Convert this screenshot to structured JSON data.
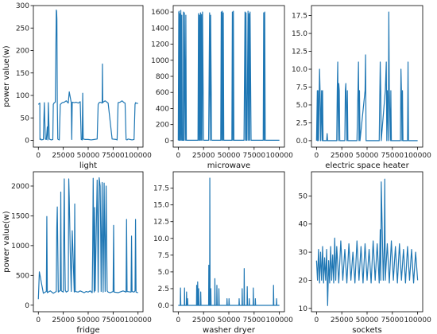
{
  "chart_data": [
    {
      "type": "line",
      "xlabel": "light",
      "ylabel": "power value(w)",
      "xlim": [
        -5000,
        105000
      ],
      "ylim": [
        -15,
        300
      ],
      "xticks": [
        0,
        25000,
        50000,
        75000,
        100000
      ],
      "yticks": [
        0,
        50,
        100,
        150,
        200,
        250,
        300
      ],
      "color": "#1f77b4",
      "series": [
        {
          "x": [
            0,
            1500,
            1600,
            2500,
            3000,
            5000,
            6000,
            7000,
            8000,
            9000,
            9500,
            10000,
            11000,
            12000,
            13000,
            14500,
            15000,
            16000,
            17000,
            17500,
            18000,
            18300,
            18600,
            19000,
            19500,
            20000,
            21000,
            22000,
            24000,
            26000,
            28000,
            30000,
            31000,
            33000,
            33500,
            34000,
            36000,
            38000,
            40000,
            42000,
            43000,
            44000,
            44500,
            45000,
            47000,
            50000,
            53000,
            56000,
            59000,
            60000,
            61000,
            62000,
            64000,
            64300,
            64600,
            65000,
            67000,
            70000,
            74000,
            78000,
            79000,
            80000,
            82000,
            84000,
            86000,
            87000,
            88000,
            89000,
            90000,
            92000,
            94000,
            96000,
            97000,
            97500,
            98000,
            100000
          ],
          "y": [
            80,
            83,
            2,
            3,
            1,
            2,
            84,
            3,
            2,
            30,
            1,
            84,
            3,
            2,
            1,
            2,
            80,
            84,
            85,
            188,
            290,
            288,
            270,
            84,
            3,
            2,
            1,
            80,
            84,
            85,
            88,
            83,
            108,
            84,
            2,
            85,
            84,
            85,
            83,
            86,
            2,
            1,
            105,
            3,
            2,
            2,
            1,
            2,
            3,
            80,
            84,
            85,
            83,
            170,
            84,
            85,
            88,
            83,
            3,
            2,
            1,
            84,
            85,
            88,
            84,
            83,
            2,
            1,
            3,
            2,
            1,
            2,
            80,
            84,
            83,
            82
          ]
        }
      ]
    },
    {
      "type": "line",
      "xlabel": "microwave",
      "ylabel": "",
      "xlim": [
        -5000,
        105000
      ],
      "ylim": [
        -80,
        1680
      ],
      "xticks": [
        0,
        25000,
        50000,
        75000,
        100000
      ],
      "yticks": [
        0,
        200,
        400,
        600,
        800,
        1000,
        1200,
        1400,
        1600
      ],
      "color": "#1f77b4",
      "series": [
        {
          "x": [
            0,
            500,
            600,
            800,
            1000,
            1500,
            2000,
            2500,
            3000,
            3500,
            4000,
            5000,
            5200,
            5600,
            6000,
            7000,
            7500,
            8000,
            10000,
            19500,
            20000,
            20500,
            21000,
            21500,
            22000,
            22500,
            23000,
            23500,
            24000,
            25000,
            30000,
            31000,
            31500,
            32000,
            33000,
            42000,
            42500,
            43000,
            43500,
            44000,
            44500,
            45000,
            53000,
            53500,
            54000,
            54500,
            55000,
            56000,
            65000,
            66000,
            66500,
            67000,
            67500,
            68000,
            69000,
            69500,
            70000,
            70500,
            71000,
            72000,
            84000,
            84500,
            85000,
            85500,
            86000,
            87000,
            100000
          ],
          "y": [
            5,
            1600,
            5,
            1610,
            5,
            1580,
            5,
            1620,
            5,
            1560,
            5,
            5,
            1600,
            5,
            1590,
            5,
            1560,
            5,
            5,
            5,
            1580,
            5,
            1560,
            5,
            1590,
            5,
            1570,
            5,
            1600,
            5,
            5,
            1590,
            5,
            1560,
            5,
            5,
            1600,
            5,
            1610,
            5,
            1590,
            5,
            5,
            1600,
            5,
            1610,
            5,
            5,
            5,
            1600,
            5,
            1590,
            5,
            5,
            1610,
            5,
            1580,
            5,
            1600,
            5,
            5,
            1590,
            5,
            1600,
            5,
            5,
            5
          ]
        }
      ]
    },
    {
      "type": "line",
      "xlabel": "electric space heater",
      "ylabel": "",
      "xlim": [
        -5000,
        105000
      ],
      "ylim": [
        -0.9,
        18.9
      ],
      "xticks": [
        0,
        25000,
        50000,
        75000,
        100000
      ],
      "yticks": [
        0.0,
        2.5,
        5.0,
        7.5,
        10.0,
        12.5,
        15.0,
        17.5
      ],
      "color": "#1f77b4",
      "series": [
        {
          "x": [
            0,
            800,
            1000,
            1500,
            2000,
            3000,
            3500,
            4000,
            5000,
            5500,
            6000,
            6500,
            7000,
            8000,
            10000,
            10500,
            11000,
            20000,
            20500,
            21000,
            21500,
            22000,
            22500,
            23000,
            24000,
            28000,
            28500,
            29000,
            30000,
            30500,
            31000,
            40000,
            41000,
            41500,
            42000,
            42500,
            43000,
            48000,
            48500,
            49000,
            50000,
            62000,
            63000,
            63500,
            64000,
            68000,
            69000,
            69500,
            70000,
            71000,
            71500,
            72000,
            73000,
            73500,
            74000,
            83000,
            83500,
            84000,
            84500,
            85000,
            85500,
            86000,
            90000,
            90500,
            91000,
            100000
          ],
          "y": [
            0,
            7,
            0,
            7,
            0,
            10,
            7,
            0,
            7,
            0,
            7,
            0,
            0,
            0,
            0,
            1,
            0,
            0,
            7,
            11,
            0,
            8,
            7,
            0,
            0,
            0,
            7,
            8,
            0,
            7,
            0,
            0,
            7,
            11,
            0,
            7,
            0,
            7,
            12,
            0,
            0,
            0,
            11,
            7,
            0,
            7,
            11,
            0,
            7,
            0,
            18,
            7,
            0,
            7,
            0,
            0,
            10,
            7,
            0,
            7,
            0,
            0,
            0,
            11,
            0,
            0
          ]
        }
      ]
    },
    {
      "type": "line",
      "xlabel": "fridge",
      "ylabel": "power value(w)",
      "xlim": [
        -5000,
        105000
      ],
      "ylim": [
        -110,
        2240
      ],
      "xticks": [
        0,
        25000,
        50000,
        75000,
        100000
      ],
      "yticks": [
        0,
        500,
        1000,
        1500,
        2000
      ],
      "color": "#1f77b4",
      "series": [
        {
          "x": [
            0,
            1000,
            5000,
            8000,
            8500,
            9000,
            12000,
            15000,
            18000,
            18500,
            19000,
            20000,
            22000,
            22500,
            23000,
            25000,
            26000,
            26500,
            27000,
            28000,
            30000,
            30500,
            31000,
            32000,
            33000,
            33500,
            34000,
            36000,
            36500,
            37000,
            40000,
            42000,
            46000,
            48000,
            50000,
            52000,
            54000,
            54500,
            55000,
            56000,
            56500,
            57000,
            59000,
            59500,
            60000,
            61000,
            62000,
            62500,
            63000,
            64000,
            65000,
            66000,
            67000,
            68000,
            69000,
            70000,
            72000,
            75000,
            75500,
            76000,
            80000,
            85000,
            88000,
            88500,
            89000,
            93000,
            93500,
            94000,
            96000,
            97000,
            97500,
            98000,
            100000
          ],
          "y": [
            100,
            560,
            200,
            230,
            1490,
            210,
            240,
            200,
            230,
            1300,
            1650,
            220,
            250,
            1900,
            240,
            220,
            2120,
            900,
            250,
            220,
            240,
            2120,
            1800,
            900,
            230,
            800,
            1250,
            220,
            1700,
            230,
            220,
            240,
            210,
            230,
            220,
            240,
            210,
            920,
            2130,
            220,
            1640,
            240,
            2100,
            1400,
            220,
            2140,
            2000,
            1300,
            230,
            2060,
            220,
            2050,
            230,
            2000,
            240,
            220,
            210,
            230,
            1340,
            220,
            210,
            240,
            220,
            1440,
            230,
            220,
            1160,
            230,
            220,
            240,
            1440,
            220,
            210
          ]
        }
      ]
    },
    {
      "type": "line",
      "xlabel": "washer dryer",
      "ylabel": "",
      "xlim": [
        -5000,
        105000
      ],
      "ylim": [
        -0.95,
        19.95
      ],
      "xticks": [
        0,
        25000,
        50000,
        75000,
        100000
      ],
      "yticks": [
        0.0,
        2.5,
        5.0,
        7.5,
        10.0,
        12.5,
        15.0,
        17.5
      ],
      "color": "#1f77b4",
      "series": [
        {
          "x": [
            0,
            2000,
            2200,
            2500,
            6000,
            6200,
            6500,
            8000,
            8200,
            8500,
            9000,
            9200,
            9500,
            10000,
            18000,
            18200,
            18500,
            19000,
            19200,
            19500,
            20000,
            20200,
            20500,
            22000,
            22200,
            22500,
            30000,
            30200,
            30500,
            31000,
            31200,
            31500,
            32000,
            32200,
            32500,
            36000,
            36200,
            36500,
            38000,
            38200,
            38500,
            40000,
            40200,
            40500,
            48000,
            48200,
            48500,
            50000,
            50200,
            50500,
            60000,
            60200,
            60500,
            63000,
            63200,
            63500,
            65000,
            65200,
            65500,
            68000,
            68200,
            68500,
            70000,
            70200,
            70500,
            74000,
            74200,
            74500,
            76000,
            76200,
            76500,
            94000,
            94200,
            94500,
            97000,
            97200,
            97500,
            100000
          ],
          "y": [
            0,
            0,
            2.6,
            0,
            0,
            2.6,
            0,
            0,
            2,
            0,
            0,
            1,
            0,
            0,
            0,
            3,
            0,
            0,
            3.5,
            0,
            0,
            2.5,
            0,
            0,
            2,
            0,
            0,
            6,
            0,
            0,
            19,
            0,
            0,
            2.5,
            0,
            0,
            4,
            0,
            0,
            3,
            0,
            0,
            2.5,
            0,
            0,
            1,
            0,
            0,
            1,
            0,
            0,
            1,
            0,
            0,
            2.5,
            0,
            0,
            5.5,
            0,
            0,
            2.8,
            0,
            0,
            1,
            0,
            0,
            2.6,
            0,
            0,
            1,
            0,
            0,
            3,
            0,
            0,
            1,
            0,
            0
          ]
        }
      ]
    },
    {
      "type": "line",
      "xlabel": "sockets",
      "ylabel": "",
      "xlim": [
        -5000,
        105000
      ],
      "ylim": [
        8.8,
        58.6
      ],
      "xticks": [
        0,
        25000,
        50000,
        75000,
        100000
      ],
      "yticks": [
        10,
        20,
        30,
        40,
        50
      ],
      "color": "#1f77b4",
      "series": [
        {
          "x": [
            0,
            1000,
            2000,
            3000,
            4000,
            5000,
            6000,
            7000,
            8000,
            9000,
            10000,
            11000,
            12000,
            13000,
            14000,
            15000,
            16000,
            17000,
            18000,
            19000,
            20000,
            22000,
            24000,
            26000,
            28000,
            30000,
            32000,
            34000,
            36000,
            38000,
            40000,
            42000,
            44000,
            46000,
            48000,
            50000,
            52000,
            54000,
            56000,
            58000,
            60000,
            62000,
            63000,
            63500,
            64000,
            66000,
            67000,
            67500,
            68000,
            70000,
            72000,
            74000,
            76000,
            78000,
            80000,
            82000,
            84000,
            86000,
            88000,
            90000,
            92000,
            94000,
            96000,
            98000,
            100000
          ],
          "y": [
            27,
            20,
            31,
            19,
            30,
            20,
            32,
            19,
            28,
            20,
            31,
            11,
            27,
            19,
            32,
            20,
            29,
            19,
            35,
            20,
            32,
            19,
            34,
            20,
            31,
            19,
            33,
            20,
            30,
            19,
            34,
            20,
            32,
            19,
            33,
            20,
            31,
            19,
            34,
            20,
            33,
            19,
            38,
            20,
            55,
            20,
            32,
            56,
            20,
            33,
            19,
            34,
            20,
            32,
            19,
            33,
            20,
            31,
            19,
            32,
            20,
            31,
            19,
            30,
            20
          ]
        }
      ]
    }
  ]
}
